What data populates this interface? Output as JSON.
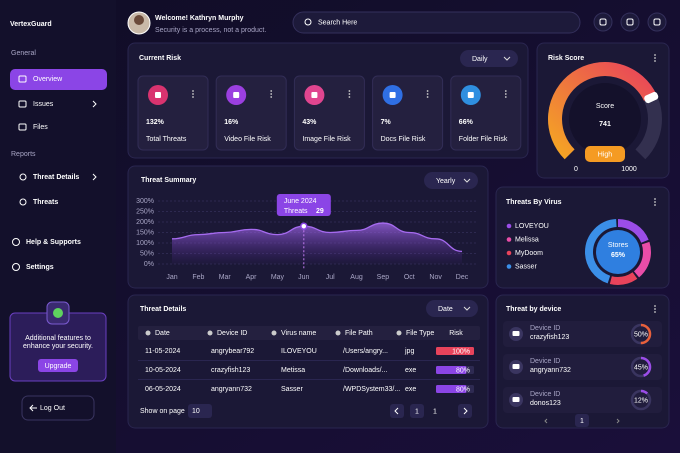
{
  "brand": "VertexGuard",
  "nav": {
    "general": "General",
    "general_items": [
      "Overview",
      "Issues",
      "Files"
    ],
    "reports": "Reports",
    "report_items": [
      "Threat Details",
      "Threats"
    ],
    "bottom_items": [
      "Help & Supports",
      "Settings"
    ]
  },
  "promo": {
    "text_lines": [
      "Additional features to",
      "enhance your security."
    ],
    "button": "Upgrade"
  },
  "logout": "Log Out",
  "header": {
    "welcome": "Welcome! Kathryn Murphy",
    "tagline": "Security is a process, not a product.",
    "search": "Search Here"
  },
  "current_risk": {
    "title": "Current Risk",
    "filter": "Daily",
    "cards": [
      {
        "value": "132%",
        "label": "Total Threats",
        "color": "#d9336f"
      },
      {
        "value": "16%",
        "label": "Video File Risk",
        "color": "#9b3fe0"
      },
      {
        "value": "43%",
        "label": "Image File Risk",
        "color": "#e0458f"
      },
      {
        "value": "7%",
        "label": "Docs File Risk",
        "color": "#2f6fe4"
      },
      {
        "value": "66%",
        "label": "Folder File Risk",
        "color": "#2f8fe0"
      }
    ]
  },
  "risk_score": {
    "title": "Risk Score",
    "label": "Score",
    "value": 741,
    "min": 0,
    "max": 1000,
    "level": "High"
  },
  "threat_summary": {
    "title": "Threat Summary",
    "filter": "Yearly",
    "chart": {
      "type": "area",
      "categories": [
        "Jan",
        "Feb",
        "Mar",
        "Apr",
        "May",
        "Jun",
        "Jul",
        "Aug",
        "Sep",
        "Oct",
        "Nov",
        "Dec"
      ],
      "values": [
        120,
        140,
        150,
        165,
        140,
        180,
        150,
        160,
        195,
        150,
        120,
        60
      ],
      "color": "#a66bf0",
      "ylim": [
        0,
        300
      ],
      "yticks": [
        {
          "value": 0,
          "label": "0%"
        },
        {
          "value": 50,
          "label": "50%"
        },
        {
          "value": 100,
          "label": "100%"
        },
        {
          "value": 150,
          "label": "150%"
        },
        {
          "value": 200,
          "label": "200%"
        },
        {
          "value": 250,
          "label": "250%"
        },
        {
          "value": 300,
          "label": "300%"
        }
      ]
    },
    "tooltip": {
      "title": "June 2024",
      "label": "Threats",
      "value": 29
    }
  },
  "threats_by_virus": {
    "title": "Threats By Virus",
    "center_label": "Stores",
    "center_value": "65%",
    "segments": [
      {
        "name": "LOVEYOU",
        "color": "#9b4de8",
        "value": 20
      },
      {
        "name": "Melissa",
        "color": "#e94da8",
        "value": 20
      },
      {
        "name": "MyDoom",
        "color": "#e8435b",
        "value": 15
      },
      {
        "name": "Sasser",
        "color": "#3b8fe8",
        "value": 45
      }
    ]
  },
  "threat_details": {
    "title": "Threat Details",
    "filter": "Date",
    "columns": [
      "Date",
      "Device ID",
      "Virus name",
      "File Path",
      "File Type",
      "Risk"
    ],
    "rows": [
      {
        "date": "11-05-2024",
        "device": "angrybear792",
        "virus": "ILOVEYOU",
        "path": "/Users/angry...",
        "type": "jpg",
        "risk": 100,
        "risk_label": "100%"
      },
      {
        "date": "10-05-2024",
        "device": "crazyfish123",
        "virus": "Metissa",
        "path": "/Downloads/...",
        "type": "exe",
        "risk": 80,
        "risk_label": "80%"
      },
      {
        "date": "06-05-2024",
        "device": "angryann732",
        "virus": "Sasser",
        "path": "/WPDSystem33/...",
        "type": "exe",
        "risk": 80,
        "risk_label": "80%"
      }
    ],
    "show_label": "Show on page",
    "page_size": "10",
    "pages": [
      "1",
      "1"
    ]
  },
  "threat_by_device": {
    "title": "Threat by device",
    "devices": [
      {
        "label": "Device ID",
        "name": "crazyfish123",
        "percent": 50,
        "percent_label": "50%",
        "color": "#e8603b"
      },
      {
        "label": "Device ID",
        "name": "angryann732",
        "percent": 45,
        "percent_label": "45%",
        "color": "#9b4de8"
      },
      {
        "label": "Device ID",
        "name": "donos123",
        "percent": 12,
        "percent_label": "12%",
        "color": "#9b4de8"
      }
    ],
    "page": "1"
  }
}
